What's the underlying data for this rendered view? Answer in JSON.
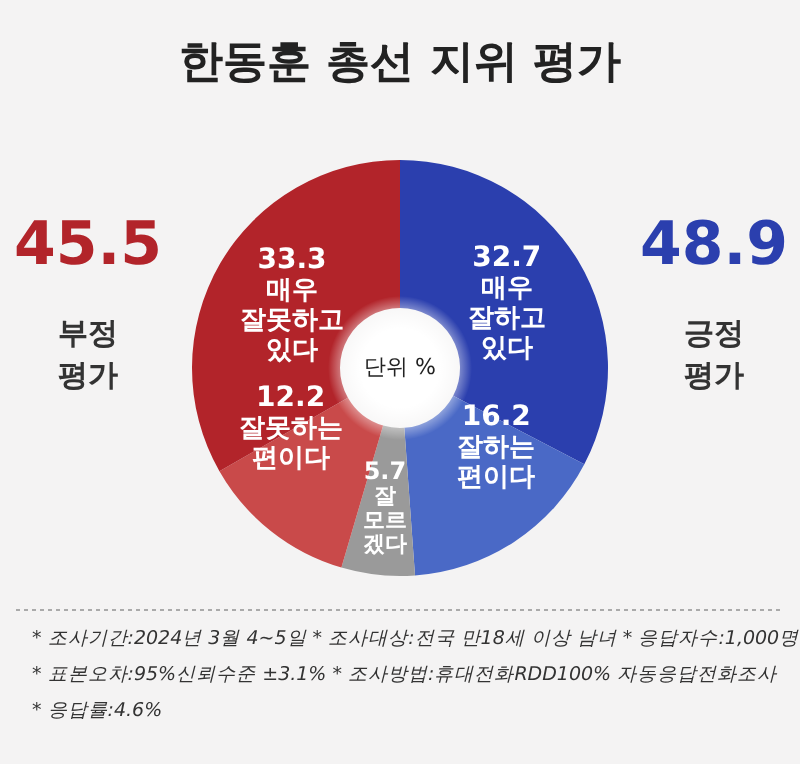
{
  "chart_data": {
    "type": "donut",
    "title": "한동훈 총선 지위 평가",
    "categories": [
      "매우\n잘하고\n있다",
      "잘하는\n편이다",
      "잘\n모르\n겠다",
      "잘못하는\n편이다",
      "매우\n잘못하고\n있다"
    ],
    "values": [
      32.7,
      16.2,
      5.7,
      12.2,
      33.3
    ],
    "colors": [
      "#2b3fae",
      "#4a69c6",
      "#9a9a9a",
      "#c94a4a",
      "#b2242a"
    ],
    "data_labels": true,
    "annotations": [
      "45.5",
      "부정\n평가",
      "48.9",
      "긍정\n평가",
      "단위 %",
      "* 조사기간:2024년 3월 4~5일  * 조사대상:전국 만18세 이상 남녀  * 응답자수:1,000명",
      "* 표본오차:95%신뢰수준 ±3.1%  * 조사방법:휴대전화RDD100% 자동응답전화조사",
      "* 응답률:4.6%"
    ]
  }
}
